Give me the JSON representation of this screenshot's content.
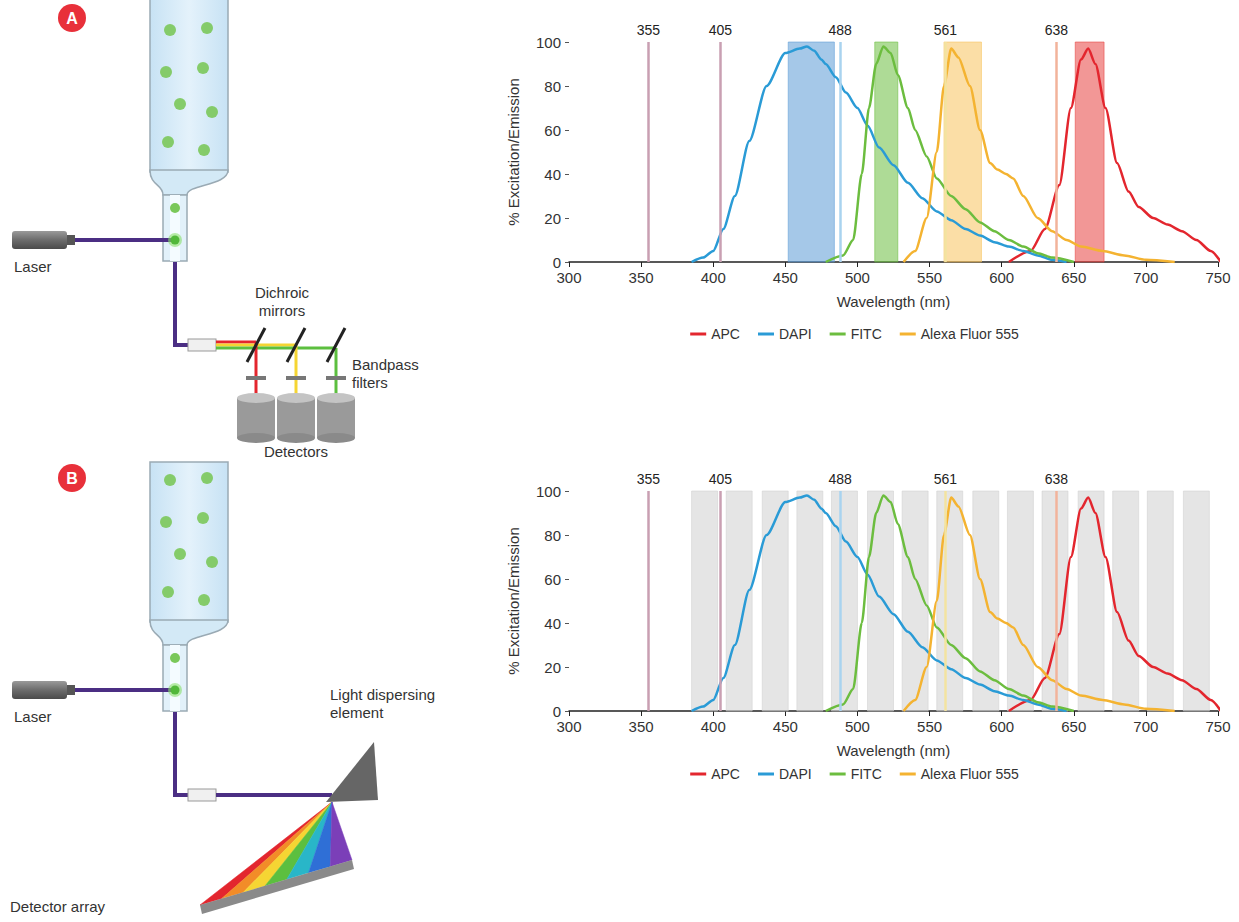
{
  "diagrams": [
    {
      "letter": "A",
      "labels": {
        "laser": "Laser",
        "mirrors": "Dichroic mirrors",
        "filters": "Bandpass filters",
        "detectors": "Detectors"
      }
    },
    {
      "letter": "B",
      "labels": {
        "laser": "Laser",
        "disperser": "Light dispersing element",
        "array": "Detector array"
      }
    }
  ],
  "chart_data": [
    {
      "type": "line",
      "x_label": "Wavelength (nm)",
      "y_label": "% Excitation/Emission",
      "xlim": [
        300,
        750
      ],
      "xticks": [
        300,
        350,
        400,
        450,
        500,
        550,
        600,
        650,
        700,
        750
      ],
      "ylim": [
        0,
        100
      ],
      "yticks": [
        0,
        20,
        40,
        60,
        80,
        100
      ],
      "grid": false,
      "legend": "bottom",
      "series": [
        {
          "name": "APC",
          "color": "#e3262e",
          "x": [
            605,
            620,
            630,
            640,
            648,
            655,
            660,
            665,
            672,
            680,
            688,
            695,
            705,
            715,
            725,
            735,
            745,
            752
          ],
          "values": [
            0,
            5,
            15,
            35,
            70,
            92,
            97,
            90,
            70,
            45,
            32,
            25,
            20,
            17,
            14,
            10,
            5,
            0
          ]
        },
        {
          "name": "DAPI",
          "color": "#2a9bd6",
          "x": [
            385,
            393,
            400,
            407,
            415,
            425,
            437,
            450,
            460,
            465,
            470,
            475,
            478,
            485,
            492,
            500,
            507,
            515,
            525,
            535,
            545,
            555,
            565,
            575,
            585,
            595,
            605,
            615,
            625,
            635,
            645
          ],
          "values": [
            0,
            2,
            5,
            15,
            30,
            55,
            80,
            95,
            97,
            98,
            96,
            92,
            90,
            84,
            77,
            70,
            62,
            52,
            44,
            36,
            29,
            23,
            19,
            15,
            12,
            9,
            7,
            5,
            3,
            1,
            0
          ]
        },
        {
          "name": "FITC",
          "color": "#6cbd3f",
          "x": [
            478,
            490,
            497,
            503,
            508,
            513,
            518,
            523,
            528,
            535,
            540,
            548,
            555,
            565,
            575,
            585,
            595,
            605,
            615,
            625,
            635,
            650
          ],
          "values": [
            0,
            3,
            10,
            40,
            70,
            90,
            98,
            95,
            85,
            70,
            60,
            48,
            38,
            30,
            24,
            18,
            14,
            10,
            7,
            4,
            2,
            0
          ]
        },
        {
          "name": "Alexa Fluor 555",
          "color": "#f4b331",
          "x": [
            532,
            540,
            548,
            555,
            560,
            565,
            570,
            578,
            585,
            592,
            597,
            603,
            608,
            615,
            625,
            635,
            645,
            655,
            670,
            685,
            700,
            720
          ],
          "values": [
            0,
            5,
            20,
            50,
            80,
            97,
            93,
            80,
            60,
            45,
            42,
            40,
            38,
            30,
            20,
            14,
            10,
            7,
            5,
            3,
            1,
            0
          ]
        }
      ],
      "lasers": [
        {
          "value": 355,
          "color": "#c99fb2"
        },
        {
          "value": 405,
          "color": "#c99fb2"
        },
        {
          "value": 488,
          "color": "#a9d3ef"
        },
        {
          "value": 561,
          "color": "#f3e3a0"
        },
        {
          "value": 638,
          "color": "#f2b39b"
        }
      ],
      "filters": [
        {
          "range": [
            452,
            484
          ],
          "color": "#5b9bd5"
        },
        {
          "range": [
            512,
            528
          ],
          "color": "#6cbd3f"
        },
        {
          "range": [
            560,
            586
          ],
          "color": "#f7c35c"
        },
        {
          "range": [
            651,
            671
          ],
          "color": "#e8413f"
        }
      ]
    },
    {
      "type": "line",
      "x_label": "Wavelength (nm)",
      "y_label": "% Excitation/Emission",
      "xlim": [
        300,
        750
      ],
      "xticks": [
        300,
        350,
        400,
        450,
        500,
        550,
        600,
        650,
        700,
        750
      ],
      "ylim": [
        0,
        100
      ],
      "yticks": [
        0,
        20,
        40,
        60,
        80,
        100
      ],
      "grid": false,
      "legend": "bottom",
      "series": [
        {
          "name": "APC",
          "color": "#e3262e",
          "x": [
            605,
            620,
            630,
            640,
            648,
            655,
            660,
            665,
            672,
            680,
            688,
            695,
            705,
            715,
            725,
            735,
            745,
            752
          ],
          "values": [
            0,
            5,
            15,
            35,
            70,
            92,
            97,
            90,
            70,
            45,
            32,
            25,
            20,
            17,
            14,
            10,
            5,
            0
          ]
        },
        {
          "name": "DAPI",
          "color": "#2a9bd6",
          "x": [
            385,
            393,
            400,
            407,
            415,
            425,
            437,
            450,
            460,
            465,
            470,
            475,
            478,
            485,
            492,
            500,
            507,
            515,
            525,
            535,
            545,
            555,
            565,
            575,
            585,
            595,
            605,
            615,
            625,
            635,
            645
          ],
          "values": [
            0,
            2,
            5,
            15,
            30,
            55,
            80,
            95,
            97,
            98,
            96,
            92,
            90,
            84,
            77,
            70,
            62,
            52,
            44,
            36,
            29,
            23,
            19,
            15,
            12,
            9,
            7,
            5,
            3,
            1,
            0
          ]
        },
        {
          "name": "FITC",
          "color": "#6cbd3f",
          "x": [
            478,
            490,
            497,
            503,
            508,
            513,
            518,
            523,
            528,
            535,
            540,
            548,
            555,
            565,
            575,
            585,
            595,
            605,
            615,
            625,
            635,
            650
          ],
          "values": [
            0,
            3,
            10,
            40,
            70,
            90,
            98,
            95,
            85,
            70,
            60,
            48,
            38,
            30,
            24,
            18,
            14,
            10,
            7,
            4,
            2,
            0
          ]
        },
        {
          "name": "Alexa Fluor 555",
          "color": "#f4b331",
          "x": [
            532,
            540,
            548,
            555,
            560,
            565,
            570,
            578,
            585,
            592,
            597,
            603,
            608,
            615,
            625,
            635,
            645,
            655,
            670,
            685,
            700,
            720
          ],
          "values": [
            0,
            5,
            20,
            50,
            80,
            97,
            93,
            80,
            60,
            45,
            42,
            40,
            38,
            30,
            20,
            14,
            10,
            7,
            5,
            3,
            1,
            0
          ]
        }
      ],
      "lasers": [
        {
          "value": 355,
          "color": "#c99fb2"
        },
        {
          "value": 405,
          "color": "#c99fb2"
        },
        {
          "value": 488,
          "color": "#a9d3ef"
        },
        {
          "value": 561,
          "color": "#f3e3a0"
        },
        {
          "value": 638,
          "color": "#f2b39b"
        }
      ],
      "filters": [
        {
          "range": [
            385,
            403
          ],
          "color": "#d0d0d0"
        },
        {
          "range": [
            409,
            427
          ],
          "color": "#d0d0d0"
        },
        {
          "range": [
            434,
            452
          ],
          "color": "#d0d0d0"
        },
        {
          "range": [
            458,
            476
          ],
          "color": "#d0d0d0"
        },
        {
          "range": [
            482,
            500
          ],
          "color": "#d0d0d0"
        },
        {
          "range": [
            507,
            525
          ],
          "color": "#d0d0d0"
        },
        {
          "range": [
            531,
            549
          ],
          "color": "#d0d0d0"
        },
        {
          "range": [
            555,
            573
          ],
          "color": "#d0d0d0"
        },
        {
          "range": [
            580,
            598
          ],
          "color": "#d0d0d0"
        },
        {
          "range": [
            604,
            622
          ],
          "color": "#d0d0d0"
        },
        {
          "range": [
            628,
            646
          ],
          "color": "#d0d0d0"
        },
        {
          "range": [
            653,
            671
          ],
          "color": "#d0d0d0"
        },
        {
          "range": [
            677,
            695
          ],
          "color": "#d0d0d0"
        },
        {
          "range": [
            701,
            719
          ],
          "color": "#d0d0d0"
        },
        {
          "range": [
            726,
            744
          ],
          "color": "#d0d0d0"
        }
      ]
    }
  ]
}
